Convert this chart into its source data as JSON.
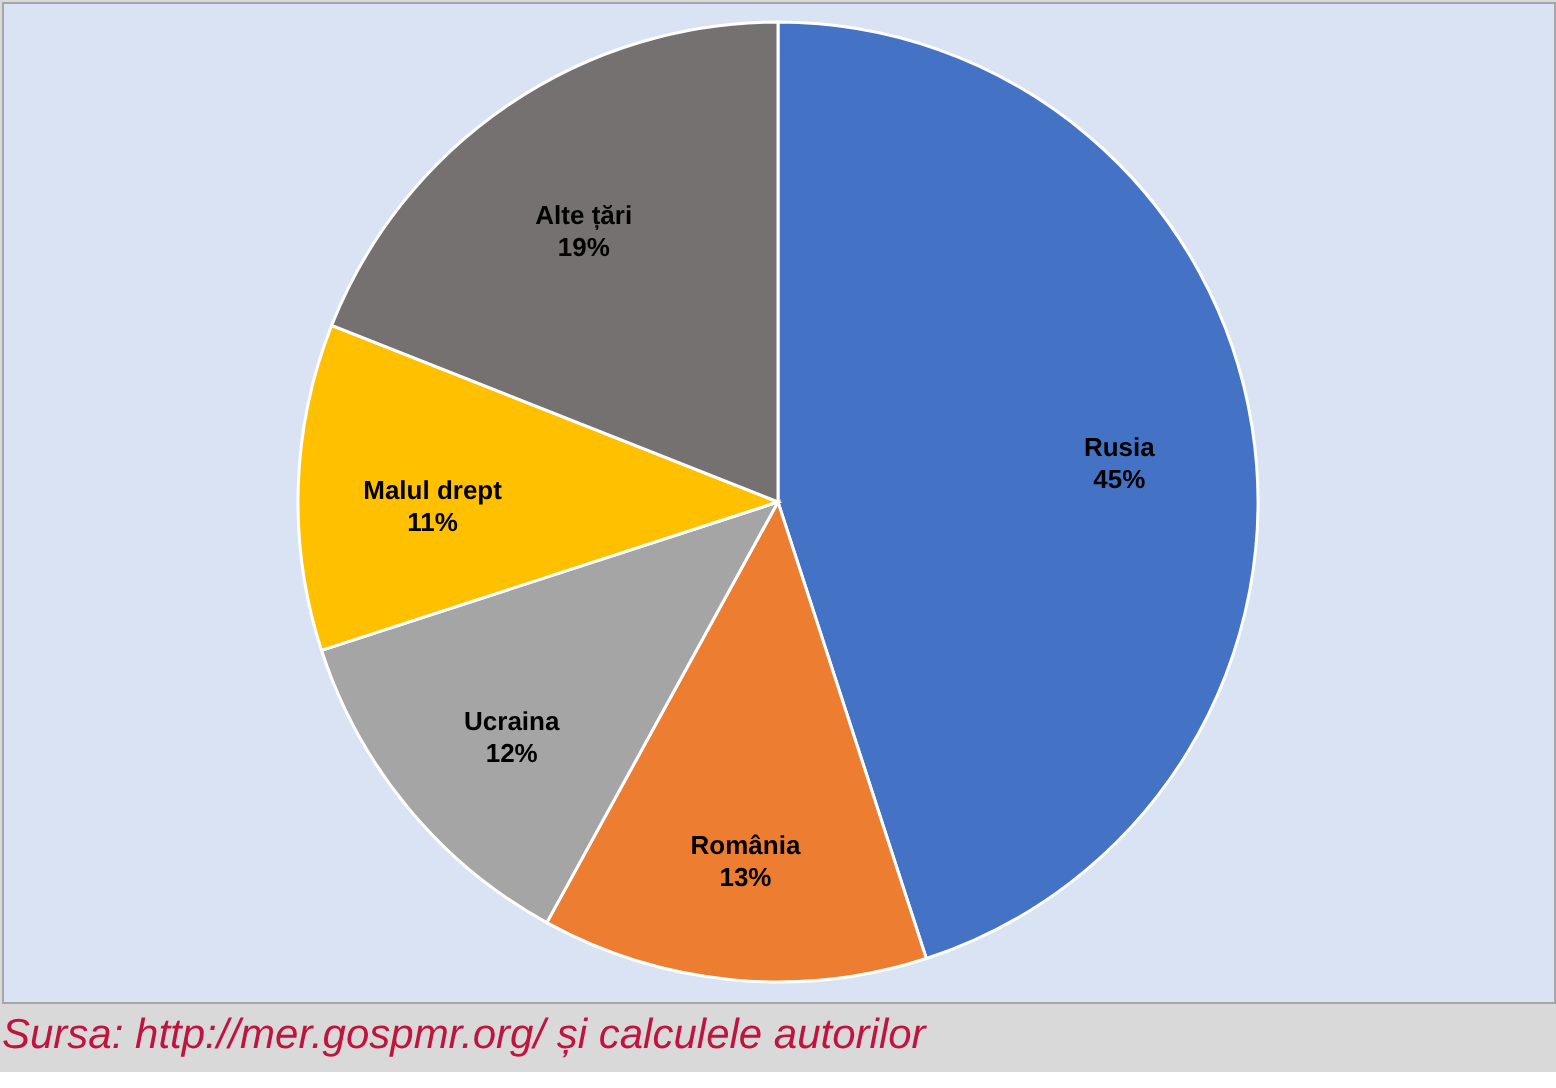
{
  "chart_data": {
    "type": "pie",
    "categories": [
      "Rusia",
      "România",
      "Ucraina",
      "Malul drept",
      "Alte țări"
    ],
    "values": [
      45,
      13,
      12,
      11,
      19
    ],
    "value_labels": [
      "45%",
      "13%",
      "12%",
      "11%",
      "19%"
    ],
    "colors": [
      "#4472c4",
      "#ed7d31",
      "#a5a5a5",
      "#ffc000",
      "#767171"
    ],
    "annotations": [
      "Sursa: http://mer.gospmr.org/ și calculele autorilor"
    ],
    "legend": false
  }
}
